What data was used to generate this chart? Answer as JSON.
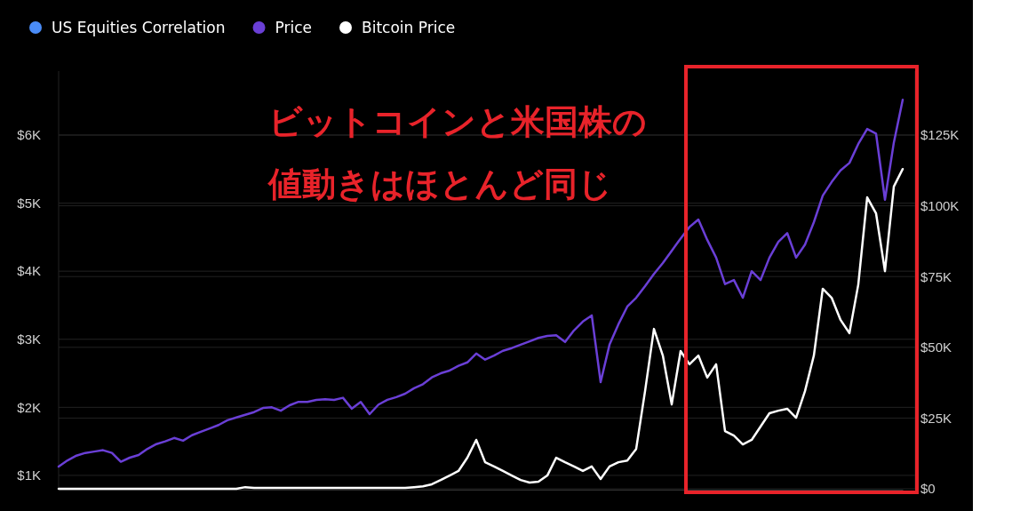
{
  "chart_data": {
    "type": "line",
    "categories": [
      null,
      null,
      null,
      null,
      null,
      null,
      null,
      null,
      null,
      null,
      null,
      null,
      null,
      null,
      null,
      null,
      null,
      null,
      null,
      null,
      null,
      null,
      null,
      null,
      null,
      null,
      null,
      null,
      null,
      null,
      null,
      null,
      null,
      null,
      null,
      null,
      null,
      null,
      null,
      null,
      null,
      null,
      null,
      null,
      null,
      null,
      null,
      null,
      null,
      null,
      null,
      null,
      null,
      null,
      null,
      null,
      null,
      null,
      null,
      null,
      null,
      null,
      null,
      null,
      null,
      null,
      null,
      null,
      null,
      null,
      null,
      null,
      null,
      null,
      null,
      null,
      null,
      null,
      null,
      null,
      null,
      null,
      null,
      null,
      null,
      null,
      null,
      null,
      null,
      null,
      null,
      null,
      null,
      null,
      null,
      null
    ],
    "series": [
      {
        "name": "US Equities Correlation",
        "color": "#4a8cf7",
        "values": [
          null,
          null,
          null,
          null,
          null,
          null,
          null,
          null,
          null,
          null,
          null,
          null,
          null,
          null,
          null,
          null,
          null,
          null,
          null,
          null,
          null,
          null,
          null,
          null,
          null,
          null,
          null,
          null,
          null,
          null,
          null,
          null,
          null,
          null,
          null,
          null,
          null,
          null,
          null,
          null,
          null,
          null,
          null,
          null,
          null,
          null,
          null,
          null,
          null,
          null,
          null,
          null,
          null,
          null,
          null,
          null,
          null,
          null,
          null,
          null,
          null,
          null,
          null,
          null,
          null,
          null,
          null,
          null,
          null,
          null,
          null,
          null,
          null,
          null,
          null,
          null,
          null,
          null,
          null,
          null,
          null,
          null,
          null,
          null,
          null,
          null,
          null,
          null,
          null,
          null,
          null,
          null,
          null,
          null,
          null,
          null
        ]
      },
      {
        "name": "Price",
        "color": "#6a3fd6",
        "values": [
          1130,
          1220,
          1290,
          1330,
          1350,
          1370,
          1330,
          1200,
          1260,
          1300,
          1390,
          1460,
          1500,
          1550,
          1510,
          1590,
          1640,
          1690,
          1740,
          1810,
          1850,
          1890,
          1930,
          1990,
          2000,
          1950,
          2030,
          2080,
          2080,
          2110,
          2120,
          2110,
          2140,
          1980,
          2080,
          1900,
          2040,
          2110,
          2150,
          2200,
          2280,
          2340,
          2440,
          2500,
          2540,
          2610,
          2660,
          2790,
          2700,
          2760,
          2830,
          2870,
          2920,
          2970,
          3020,
          3050,
          3060,
          2960,
          3130,
          3260,
          3350,
          2370,
          2920,
          3220,
          3480,
          3610,
          3780,
          3960,
          4120,
          4300,
          4480,
          4650,
          4760,
          4460,
          4200,
          3810,
          3870,
          3610,
          4000,
          3870,
          4200,
          4430,
          4560,
          4200,
          4390,
          4720,
          5110,
          5310,
          5480,
          5590,
          5870,
          6090,
          6020,
          5050,
          5890,
          6520
        ]
      },
      {
        "name": "Bitcoin Price",
        "color": "#ffffff",
        "axis": "y2",
        "values": [
          0,
          0,
          0,
          0,
          0,
          0,
          0,
          0,
          0,
          0,
          0,
          0,
          0,
          0,
          0,
          0,
          0,
          0,
          0,
          0,
          0,
          600,
          300,
          300,
          300,
          300,
          300,
          300,
          300,
          300,
          300,
          300,
          300,
          300,
          300,
          300,
          300,
          300,
          300,
          300,
          600,
          900,
          1600,
          3100,
          4700,
          6300,
          11000,
          17300,
          9400,
          7900,
          6300,
          4700,
          3100,
          2200,
          2500,
          4700,
          11000,
          9400,
          7900,
          6300,
          7900,
          3500,
          7900,
          9400,
          10000,
          14100,
          34500,
          56500,
          47100,
          29800,
          48700,
          44000,
          47100,
          39300,
          44000,
          20400,
          18800,
          15700,
          17300,
          22000,
          26700,
          27600,
          28300,
          25100,
          34500,
          47100,
          70700,
          67500,
          59700,
          55000,
          72200,
          103000,
          97300,
          76900,
          106800,
          113000
        ]
      }
    ],
    "ylim": [
      790,
      6940
    ],
    "yticks": [
      {
        "value": 1000,
        "label": "$1K"
      },
      {
        "value": 2000,
        "label": "$2K"
      },
      {
        "value": 3000,
        "label": "$3K"
      },
      {
        "value": 4000,
        "label": "$4K"
      },
      {
        "value": 5000,
        "label": "$5K"
      },
      {
        "value": 6000,
        "label": "$6K"
      }
    ],
    "y2lim": [
      -300,
      147600
    ],
    "y2ticks": [
      {
        "value": 0,
        "label": "$0"
      },
      {
        "value": 25000,
        "label": "$25K"
      },
      {
        "value": 50000,
        "label": "$50K"
      },
      {
        "value": 75000,
        "label": "$75K"
      },
      {
        "value": 100000,
        "label": "$100K"
      },
      {
        "value": 125000,
        "label": "$125K"
      }
    ],
    "grid": "y",
    "legend": "top left",
    "line_style": "solid",
    "marker": "none",
    "annotations": [
      "ビットコインと米国株の",
      "値動きはほとんど同じ"
    ]
  }
}
